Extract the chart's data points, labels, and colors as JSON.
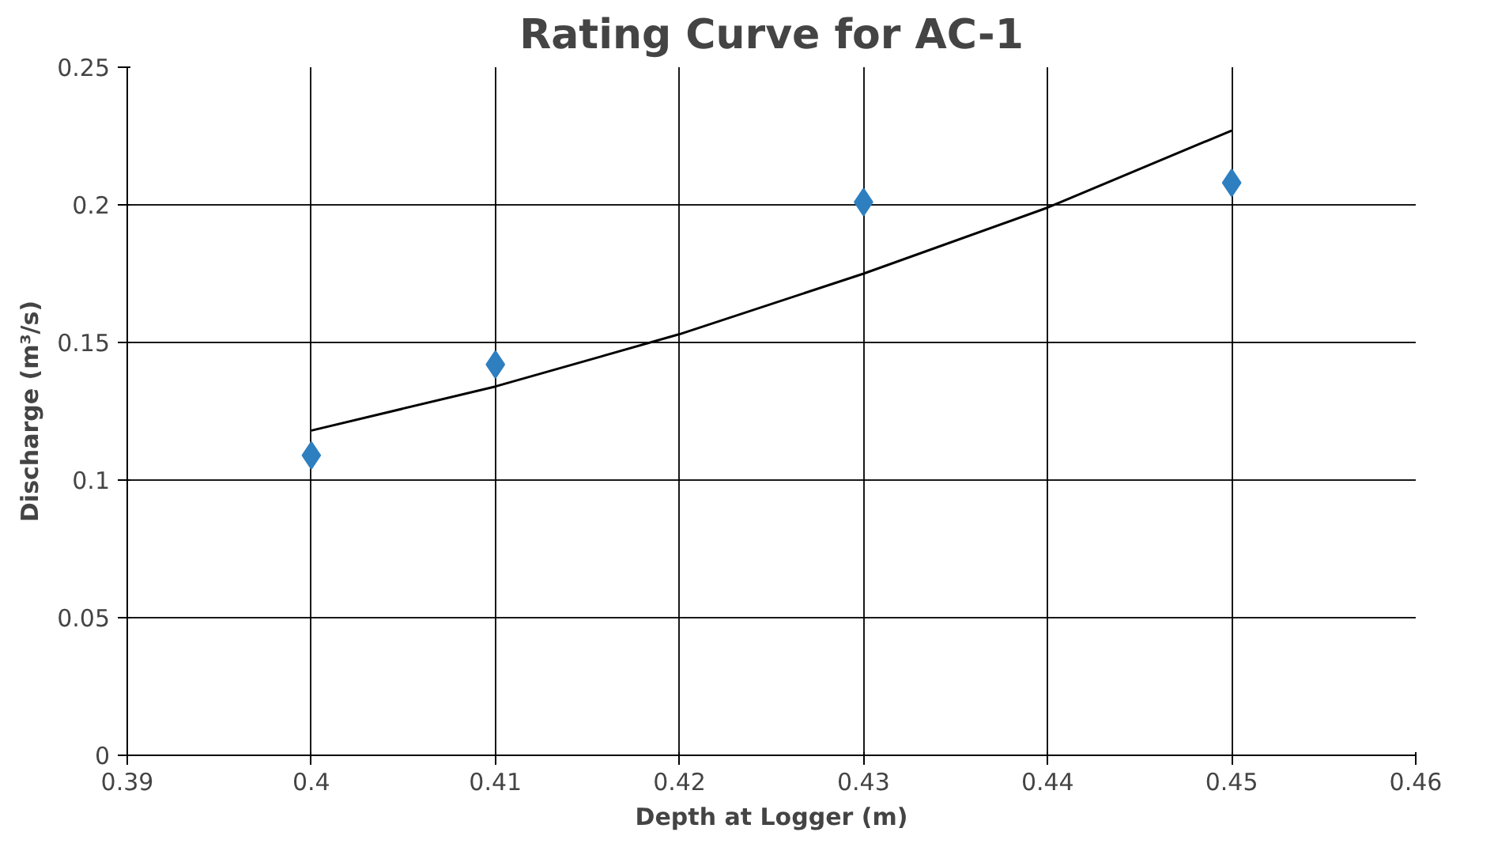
{
  "chart_data": {
    "type": "scatter",
    "title": "Rating Curve for AC-1",
    "xlabel": "Depth at Logger (m)",
    "ylabel": "Discharge (m³/s)",
    "series": [
      {
        "marker": "diamond",
        "color": "#2e7fc0",
        "x": [
          0.4,
          0.41,
          0.43,
          0.45
        ],
        "values": [
          0.109,
          0.142,
          0.201,
          0.208
        ]
      },
      {
        "type": "line",
        "marker": "none",
        "color": "#000000",
        "x": [
          0.4,
          0.41,
          0.42,
          0.43,
          0.44,
          0.45
        ],
        "values": [
          0.118,
          0.134,
          0.153,
          0.175,
          0.199,
          0.227
        ]
      }
    ],
    "xlim": [
      0.39,
      0.46
    ],
    "xticks": [
      0.39,
      0.4,
      0.41,
      0.42,
      0.43,
      0.44,
      0.45,
      0.46
    ],
    "ylim": [
      0,
      0.25
    ],
    "yticks": [
      0,
      0.05,
      0.1,
      0.15,
      0.2,
      0.25
    ],
    "grid": true
  }
}
